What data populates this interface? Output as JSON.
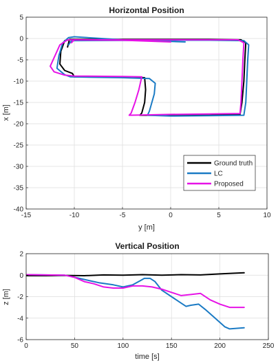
{
  "chart_data": [
    {
      "type": "line",
      "title": "Horizontal Position",
      "xlabel": "y [m]",
      "ylabel": "x [m]",
      "xlim": [
        -15,
        10
      ],
      "ylim": [
        -40,
        5
      ],
      "xticks": [
        -15,
        -10,
        -5,
        0,
        5,
        10
      ],
      "yticks": [
        -40,
        -35,
        -30,
        -25,
        -20,
        -15,
        -10,
        -5,
        0,
        5
      ],
      "grid": true,
      "legend": {
        "position": "bottom-right",
        "entries": [
          "Ground truth",
          "LC",
          "Proposed"
        ]
      },
      "series": [
        {
          "name": "Ground truth",
          "color": "#000000",
          "points": [
            [
              0.0,
              -0.3
            ],
            [
              -5.0,
              -0.3
            ],
            [
              -10.3,
              -0.2
            ],
            [
              -11.0,
              -0.5
            ],
            [
              -11.4,
              -3.0
            ],
            [
              -11.5,
              -6.0
            ],
            [
              -11.0,
              -7.5
            ],
            [
              -10.2,
              -8.2
            ],
            [
              -10.0,
              -9.0
            ],
            [
              -5.0,
              -9.0
            ],
            [
              -2.7,
              -9.2
            ],
            [
              -2.6,
              -12.0
            ],
            [
              -2.7,
              -15.0
            ],
            [
              -3.0,
              -17.5
            ],
            [
              -3.2,
              -18.0
            ],
            [
              0.0,
              -18.0
            ],
            [
              4.0,
              -18.0
            ],
            [
              7.2,
              -17.8
            ],
            [
              7.4,
              -15.0
            ],
            [
              7.6,
              -10.0
            ],
            [
              7.7,
              -5.0
            ],
            [
              7.8,
              -1.0
            ],
            [
              7.3,
              -0.3
            ],
            [
              4.0,
              -0.2
            ],
            [
              0.0,
              -0.2
            ],
            [
              -10.5,
              -0.2
            ],
            [
              -10.7,
              -2.0
            ]
          ]
        },
        {
          "name": "LC",
          "color": "#1a7ac4",
          "points": [
            [
              1.5,
              -0.8
            ],
            [
              -5.0,
              -0.3
            ],
            [
              -10.0,
              0.4
            ],
            [
              -10.6,
              0.2
            ],
            [
              -11.2,
              -1.0
            ],
            [
              -11.6,
              -4.0
            ],
            [
              -11.8,
              -7.0
            ],
            [
              -11.0,
              -8.5
            ],
            [
              -10.4,
              -9.0
            ],
            [
              -5.0,
              -9.2
            ],
            [
              -2.2,
              -9.4
            ],
            [
              -1.6,
              -10.5
            ],
            [
              -1.7,
              -13.0
            ],
            [
              -2.2,
              -17.0
            ],
            [
              -2.4,
              -18.0
            ],
            [
              0.0,
              -18.2
            ],
            [
              4.0,
              -18.1
            ],
            [
              7.6,
              -18.0
            ],
            [
              7.8,
              -15.0
            ],
            [
              7.9,
              -10.0
            ],
            [
              8.0,
              -5.0
            ],
            [
              8.1,
              -1.5
            ],
            [
              7.6,
              -0.5
            ],
            [
              4.0,
              -0.4
            ],
            [
              0.0,
              -0.4
            ],
            [
              -10.3,
              -0.5
            ],
            [
              -10.6,
              -1.5
            ]
          ]
        },
        {
          "name": "Proposed",
          "color": "#e612e6",
          "points": [
            [
              0.0,
              -0.8
            ],
            [
              -5.0,
              -0.4
            ],
            [
              -10.7,
              -0.3
            ],
            [
              -11.5,
              -1.5
            ],
            [
              -12.0,
              -4.0
            ],
            [
              -12.5,
              -6.5
            ],
            [
              -12.1,
              -7.8
            ],
            [
              -11.0,
              -8.6
            ],
            [
              -10.0,
              -8.8
            ],
            [
              -5.0,
              -8.9
            ],
            [
              -3.0,
              -9.0
            ],
            [
              -3.3,
              -12.0
            ],
            [
              -3.7,
              -15.0
            ],
            [
              -4.1,
              -17.5
            ],
            [
              -4.3,
              -18.0
            ],
            [
              0.0,
              -17.8
            ],
            [
              4.0,
              -17.7
            ],
            [
              7.2,
              -17.6
            ],
            [
              7.3,
              -15.0
            ],
            [
              7.4,
              -10.0
            ],
            [
              7.5,
              -5.0
            ],
            [
              7.6,
              -1.0
            ],
            [
              7.0,
              -0.3
            ],
            [
              4.0,
              -0.3
            ],
            [
              0.0,
              -0.3
            ],
            [
              -10.0,
              -0.3
            ],
            [
              -10.3,
              -1.0
            ]
          ]
        }
      ]
    },
    {
      "type": "line",
      "title": "Vertical Position",
      "xlabel": "time [s]",
      "ylabel": "z [m]",
      "xlim": [
        0,
        250
      ],
      "ylim": [
        -6,
        2
      ],
      "xticks": [
        0,
        50,
        100,
        150,
        200,
        250
      ],
      "yticks": [
        -6,
        -4,
        -2,
        0,
        2
      ],
      "grid": true,
      "series": [
        {
          "name": "Ground truth",
          "color": "#000000",
          "points": [
            [
              0,
              -0.05
            ],
            [
              20,
              -0.05
            ],
            [
              40,
              -0.02
            ],
            [
              60,
              -0.05
            ],
            [
              80,
              0.02
            ],
            [
              100,
              0.0
            ],
            [
              120,
              0.05
            ],
            [
              140,
              0.0
            ],
            [
              160,
              0.05
            ],
            [
              180,
              0.02
            ],
            [
              200,
              0.12
            ],
            [
              215,
              0.18
            ],
            [
              225,
              0.22
            ]
          ]
        },
        {
          "name": "LC",
          "color": "#1a7ac4",
          "points": [
            [
              0,
              0.05
            ],
            [
              20,
              0.02
            ],
            [
              40,
              0.0
            ],
            [
              45,
              -0.1
            ],
            [
              55,
              -0.3
            ],
            [
              65,
              -0.5
            ],
            [
              75,
              -0.7
            ],
            [
              90,
              -0.9
            ],
            [
              100,
              -1.1
            ],
            [
              110,
              -0.9
            ],
            [
              118,
              -0.5
            ],
            [
              122,
              -0.3
            ],
            [
              128,
              -0.3
            ],
            [
              133,
              -0.6
            ],
            [
              140,
              -1.4
            ],
            [
              150,
              -2.0
            ],
            [
              160,
              -2.6
            ],
            [
              165,
              -2.9
            ],
            [
              170,
              -2.8
            ],
            [
              178,
              -2.7
            ],
            [
              185,
              -3.2
            ],
            [
              195,
              -4.0
            ],
            [
              205,
              -4.8
            ],
            [
              210,
              -5.0
            ],
            [
              225,
              -4.9
            ]
          ]
        },
        {
          "name": "Proposed",
          "color": "#e612e6",
          "points": [
            [
              0,
              0.05
            ],
            [
              20,
              0.02
            ],
            [
              40,
              0.0
            ],
            [
              50,
              -0.2
            ],
            [
              60,
              -0.6
            ],
            [
              70,
              -0.8
            ],
            [
              80,
              -1.1
            ],
            [
              90,
              -1.2
            ],
            [
              100,
              -1.2
            ],
            [
              110,
              -1.0
            ],
            [
              120,
              -1.0
            ],
            [
              130,
              -1.1
            ],
            [
              140,
              -1.3
            ],
            [
              150,
              -1.6
            ],
            [
              160,
              -1.9
            ],
            [
              170,
              -1.8
            ],
            [
              180,
              -1.7
            ],
            [
              190,
              -2.3
            ],
            [
              200,
              -2.7
            ],
            [
              210,
              -3.0
            ],
            [
              225,
              -3.0
            ]
          ]
        }
      ]
    }
  ]
}
